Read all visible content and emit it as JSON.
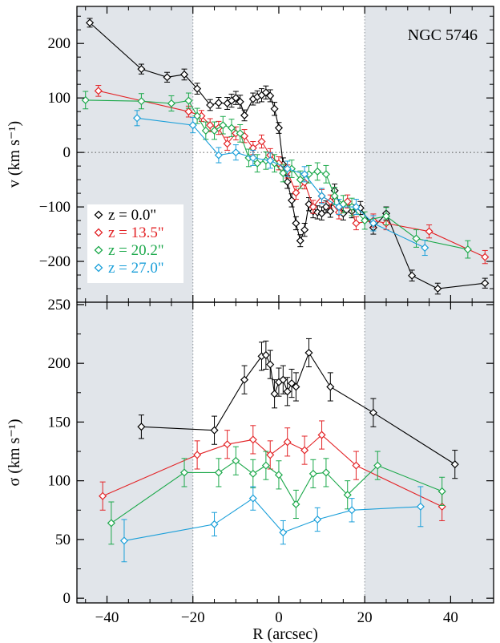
{
  "chart_data": [
    {
      "type": "scatter",
      "panel": "top",
      "title": "",
      "annotation": "NGC 5746",
      "xlabel": "",
      "ylabel": "v (km s⁻¹)",
      "xlim": [
        -47,
        50
      ],
      "ylim": [
        -275,
        268
      ],
      "yticks": [
        -200,
        -100,
        0,
        100,
        200
      ],
      "zero_line": true,
      "shaded_regions": [
        [
          -47,
          -20
        ],
        [
          20,
          50
        ]
      ],
      "legend_position": "left-middle",
      "series": [
        {
          "name": "z = 0.0\"",
          "color": "#000000",
          "x": [
            -44,
            -32,
            -26,
            -22,
            -19,
            -16,
            -14,
            -12,
            -11,
            -10,
            -9,
            -8,
            -6,
            -5,
            -4,
            -3,
            -2,
            -1,
            0,
            1,
            2,
            3,
            4,
            5,
            6,
            7,
            8,
            9,
            10,
            11,
            12,
            13,
            15,
            17,
            19,
            22,
            25,
            31,
            37,
            48
          ],
          "y": [
            238,
            153,
            138,
            143,
            117,
            87,
            91,
            90,
            95,
            100,
            93,
            68,
            98,
            102,
            105,
            110,
            104,
            80,
            45,
            -22,
            -54,
            -88,
            -130,
            -162,
            -142,
            -95,
            -108,
            -110,
            -112,
            -100,
            -108,
            -70,
            -112,
            -108,
            -102,
            -138,
            -112,
            -226,
            -250,
            -240
          ],
          "err": [
            8,
            9,
            9,
            10,
            10,
            10,
            10,
            11,
            12,
            12,
            12,
            10,
            11,
            11,
            12,
            12,
            11,
            12,
            10,
            12,
            12,
            12,
            12,
            11,
            12,
            12,
            12,
            12,
            12,
            11,
            11,
            12,
            12,
            12,
            12,
            12,
            12,
            10,
            10,
            9
          ]
        },
        {
          "name": "z = 13.5\"",
          "color": "#e32326",
          "x": [
            -42,
            -21,
            -18,
            -16,
            -14,
            -12,
            -10,
            -8,
            -6,
            -4,
            -2,
            0,
            2,
            4,
            6,
            8,
            10,
            12,
            14,
            16,
            18,
            22,
            25,
            35,
            48
          ],
          "y": [
            113,
            75,
            67,
            50,
            45,
            16,
            35,
            30,
            8,
            20,
            -5,
            -20,
            -35,
            -74,
            -55,
            -100,
            -80,
            -90,
            -110,
            -90,
            -130,
            -125,
            -130,
            -145,
            -192
          ],
          "err": [
            10,
            10,
            10,
            12,
            12,
            12,
            12,
            12,
            12,
            12,
            12,
            12,
            12,
            12,
            12,
            12,
            12,
            12,
            12,
            12,
            12,
            12,
            12,
            12,
            12
          ]
        },
        {
          "name": "z = 20.2\"",
          "color": "#1ba84a",
          "x": [
            -45,
            -32,
            -25,
            -21,
            -19,
            -17,
            -15,
            -13,
            -11,
            -9,
            -7,
            -5,
            -3,
            -1,
            1,
            3,
            5,
            7,
            9,
            11,
            13,
            15,
            17,
            20,
            25,
            32,
            44
          ],
          "y": [
            96,
            94,
            90,
            95,
            67,
            40,
            40,
            50,
            45,
            35,
            -10,
            -20,
            -15,
            -20,
            -38,
            -30,
            -50,
            -40,
            -35,
            -40,
            -80,
            -95,
            -100,
            -125,
            -117,
            -158,
            -178
          ],
          "err": [
            16,
            14,
            14,
            14,
            14,
            16,
            16,
            16,
            16,
            16,
            16,
            16,
            16,
            16,
            16,
            16,
            16,
            16,
            16,
            16,
            16,
            16,
            16,
            16,
            16,
            16,
            16
          ]
        },
        {
          "name": "z = 27.0\"",
          "color": "#1a9fd9",
          "x": [
            -33,
            -20,
            -14,
            -10,
            -6,
            -2,
            2,
            6,
            10,
            14,
            18,
            22,
            34
          ],
          "y": [
            63,
            50,
            -5,
            0,
            -10,
            -15,
            -30,
            -40,
            -80,
            -100,
            -100,
            -130,
            -175
          ],
          "err": [
            14,
            14,
            14,
            14,
            14,
            14,
            14,
            14,
            14,
            14,
            14,
            14,
            14
          ]
        }
      ]
    },
    {
      "type": "scatter",
      "panel": "bottom",
      "title": "",
      "xlabel": "R (arcsec)",
      "ylabel": "σ (km s⁻¹)",
      "xlim": [
        -47,
        50
      ],
      "ylim": [
        -4,
        252
      ],
      "yticks": [
        0,
        50,
        100,
        150,
        200,
        250
      ],
      "xticks": [
        -40,
        -20,
        0,
        20,
        40
      ],
      "shaded_regions": [
        [
          -47,
          -20
        ],
        [
          20,
          50
        ]
      ],
      "series": [
        {
          "name": "z = 0.0\"",
          "color": "#000000",
          "x": [
            -32,
            -15,
            -8,
            -4,
            -3,
            -2,
            -1,
            0,
            1,
            2,
            3,
            4,
            7,
            12,
            22,
            41
          ],
          "y": [
            146,
            143,
            186,
            206,
            207,
            199,
            174,
            184,
            186,
            176,
            183,
            180,
            209,
            180,
            158,
            114
          ],
          "err": [
            10,
            12,
            12,
            12,
            12,
            12,
            12,
            12,
            12,
            12,
            12,
            12,
            12,
            12,
            12,
            12
          ]
        },
        {
          "name": "z = 13.5\"",
          "color": "#e32326",
          "x": [
            -41,
            -19,
            -12,
            -6,
            -2,
            2,
            6,
            10,
            18,
            38
          ],
          "y": [
            87,
            122,
            131,
            135,
            122,
            133,
            126,
            139,
            113,
            78
          ],
          "err": [
            12,
            12,
            12,
            12,
            12,
            12,
            12,
            12,
            12,
            12
          ]
        },
        {
          "name": "z = 20.2\"",
          "color": "#1ba84a",
          "x": [
            -39,
            -22,
            -14,
            -10,
            -6,
            -3,
            0,
            4,
            8,
            11,
            16,
            23,
            38
          ],
          "y": [
            64,
            107,
            107,
            117,
            106,
            113,
            105,
            80,
            106,
            107,
            88,
            113,
            91
          ],
          "err": [
            18,
            12,
            12,
            12,
            12,
            12,
            12,
            12,
            12,
            12,
            12,
            12,
            12
          ]
        },
        {
          "name": "z = 27.0\"",
          "color": "#1a9fd9",
          "x": [
            -36,
            -15,
            -6,
            1,
            9,
            17,
            33
          ],
          "y": [
            49,
            63,
            85,
            56,
            67,
            75,
            78
          ],
          "err": [
            18,
            10,
            10,
            10,
            10,
            10,
            17
          ]
        }
      ]
    }
  ]
}
